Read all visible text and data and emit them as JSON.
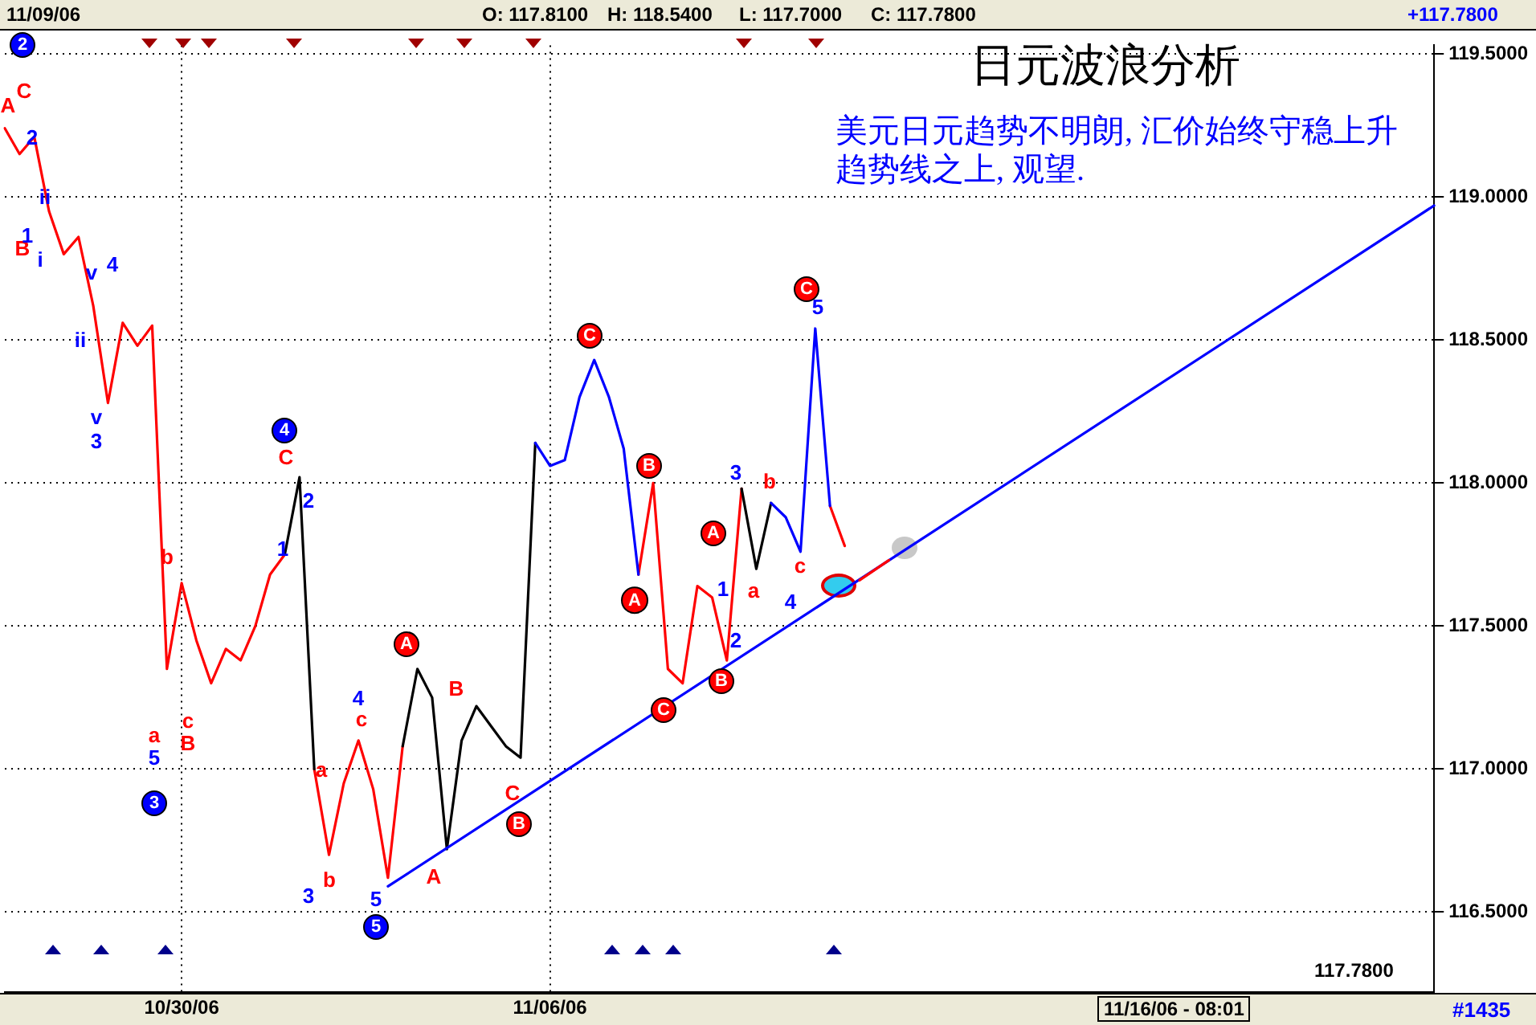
{
  "chart_data": {
    "type": "line",
    "title": "日元波浪分析",
    "categories": [
      null,
      null,
      null,
      null,
      null,
      null,
      null,
      null,
      null,
      null,
      null,
      null,
      "10/30/06",
      null,
      null,
      null,
      null,
      null,
      null,
      null,
      null,
      null,
      null,
      null,
      null,
      null,
      null,
      null,
      null,
      null,
      null,
      null,
      null,
      null,
      null,
      null,
      null,
      "11/06/06",
      null,
      null,
      null,
      null,
      null,
      null,
      null,
      null,
      null,
      null,
      null,
      null,
      null,
      null,
      null,
      null,
      null,
      null,
      null,
      null,
      null,
      null,
      null,
      null,
      null,
      null,
      null,
      null,
      null,
      null,
      null,
      null,
      null,
      null,
      null,
      null,
      null,
      null,
      null,
      null,
      null,
      null,
      null,
      null,
      null,
      null,
      null,
      null,
      null,
      null,
      null,
      null,
      null,
      null,
      null,
      null,
      null,
      null,
      null,
      null
    ],
    "ylim": [
      116.22,
      119.53
    ],
    "yticks": [
      {
        "value": 116.5,
        "label": "116.5000"
      },
      {
        "value": 117,
        "label": "117.0000"
      },
      {
        "value": 117.5,
        "label": "117.5000"
      },
      {
        "value": 118,
        "label": "118.0000"
      },
      {
        "value": 118.5,
        "label": "118.5000"
      },
      {
        "value": 119,
        "label": "119.0000"
      },
      {
        "value": 119.5,
        "label": "119.5000"
      }
    ],
    "grid": true,
    "marker": "none",
    "line_style": "solid",
    "series": [
      {
        "color": "#ff0000",
        "values": [
          119.24,
          119.15,
          119.21,
          118.95,
          118.8,
          118.86,
          118.62,
          118.28,
          118.56,
          118.48,
          118.55,
          117.35,
          117.65,
          117.45,
          117.3,
          117.42,
          117.38,
          117.5,
          117.68,
          117.75,
          null,
          117.0,
          116.7,
          116.95,
          117.1,
          116.93,
          116.62,
          117.08,
          null,
          null,
          null,
          null,
          null,
          null,
          null,
          null,
          null,
          null,
          null,
          null,
          null,
          null,
          null,
          117.68,
          118.0,
          117.35,
          117.3,
          117.64,
          117.6,
          117.38,
          117.98,
          null,
          null,
          null,
          null,
          null,
          117.92,
          117.78,
          null,
          null,
          null,
          null,
          null,
          null,
          null,
          null,
          null,
          null,
          null,
          null,
          null,
          null,
          null,
          null,
          null,
          null,
          null,
          null,
          null,
          null,
          null,
          null,
          null,
          null,
          null,
          null,
          null,
          null,
          null,
          null,
          null,
          null,
          null,
          null,
          null,
          null,
          null,
          null
        ]
      },
      {
        "color": "#000000",
        "values": [
          null,
          null,
          null,
          null,
          null,
          null,
          null,
          null,
          null,
          null,
          null,
          null,
          null,
          null,
          null,
          null,
          null,
          null,
          null,
          117.75,
          118.02,
          117.0,
          null,
          null,
          null,
          null,
          null,
          117.08,
          117.35,
          117.25,
          116.72,
          117.1,
          117.22,
          117.15,
          117.08,
          117.04,
          118.14,
          null,
          null,
          null,
          null,
          null,
          null,
          null,
          null,
          null,
          null,
          null,
          null,
          null,
          117.98,
          117.7,
          117.93,
          null,
          null,
          null,
          null,
          null,
          null,
          null,
          null,
          null,
          null,
          null,
          null,
          null,
          null,
          null,
          null,
          null,
          null,
          null,
          null,
          null,
          null,
          null,
          null,
          null,
          null,
          null,
          null,
          null,
          null,
          null,
          null,
          null,
          null,
          null,
          null,
          null,
          null,
          null,
          null,
          null,
          null,
          null,
          null,
          null
        ]
      },
      {
        "color": "#0000ff",
        "values": [
          null,
          null,
          null,
          null,
          null,
          null,
          null,
          null,
          null,
          null,
          null,
          null,
          null,
          null,
          null,
          null,
          null,
          null,
          null,
          null,
          null,
          null,
          null,
          null,
          null,
          null,
          null,
          null,
          null,
          null,
          null,
          null,
          null,
          null,
          null,
          null,
          118.14,
          118.06,
          118.08,
          118.3,
          118.43,
          118.3,
          118.12,
          117.68,
          null,
          null,
          null,
          null,
          null,
          null,
          null,
          null,
          117.93,
          117.88,
          117.76,
          118.54,
          117.92,
          null,
          null,
          null,
          null,
          null,
          null,
          null,
          null,
          null,
          null,
          null,
          null,
          null,
          null,
          null,
          null,
          null,
          null,
          null,
          null,
          null,
          null,
          null,
          null,
          null,
          null,
          null,
          null,
          null,
          null,
          null,
          null,
          null,
          null,
          null,
          null,
          null,
          null,
          null,
          null,
          null
        ]
      },
      {
        "color": "#0000ff",
        "values": [
          null,
          null,
          null,
          null,
          null,
          null,
          null,
          null,
          null,
          null,
          null,
          null,
          null,
          null,
          null,
          null,
          null,
          null,
          null,
          null,
          null,
          null,
          null,
          null,
          null,
          null,
          116.59,
          null,
          null,
          null,
          null,
          null,
          null,
          null,
          null,
          null,
          null,
          null,
          null,
          null,
          null,
          null,
          null,
          null,
          null,
          null,
          null,
          null,
          null,
          null,
          null,
          null,
          null,
          null,
          null,
          null,
          null,
          null,
          null,
          null,
          null,
          null,
          null,
          null,
          null,
          null,
          null,
          null,
          null,
          null,
          null,
          null,
          null,
          null,
          null,
          null,
          null,
          null,
          null,
          null,
          null,
          null,
          null,
          null,
          null,
          null,
          null,
          null,
          null,
          null,
          null,
          null,
          null,
          null,
          null,
          null,
          null,
          118.97
        ]
      },
      {
        "color": "#ff0000",
        "values": [
          null,
          null,
          null,
          null,
          null,
          null,
          null,
          null,
          null,
          null,
          null,
          null,
          null,
          null,
          null,
          null,
          null,
          null,
          null,
          null,
          null,
          null,
          null,
          null,
          null,
          null,
          null,
          null,
          null,
          null,
          null,
          null,
          null,
          null,
          null,
          null,
          null,
          null,
          null,
          null,
          null,
          null,
          null,
          null,
          null,
          null,
          null,
          null,
          null,
          null,
          null,
          null,
          null,
          null,
          null,
          null,
          null,
          null,
          117.66,
          null,
          117.73,
          null,
          null,
          null,
          null,
          null,
          null,
          null,
          null,
          null,
          null,
          null,
          null,
          null,
          null,
          null,
          null,
          null,
          null,
          null,
          null,
          null,
          null,
          null,
          null,
          null,
          null,
          null,
          null,
          null,
          null,
          null,
          null,
          null,
          null,
          null,
          null,
          null
        ]
      }
    ],
    "annotations": [
      "11/09/06",
      "O: 117.8100",
      "H: 118.5400",
      "L: 117.7000",
      "C: 117.7800",
      "+117.7800",
      "美元日元趋势不明朗, 汇价始终守稳上升趋势线之上, 观望.",
      "117.7800",
      "11/16/06 - 08:01",
      "#1435",
      "A",
      "C",
      "2",
      "B",
      "i",
      "ii",
      "v",
      "4",
      "ii",
      "v",
      "3",
      "b",
      "a",
      "5",
      "3",
      "c",
      "B",
      "4",
      "C",
      "2",
      {
        "text": "1",
        "y": 117.78
      },
      "4",
      "c",
      {
        "text": "a",
        "y": 116.95
      },
      "b",
      "3",
      "5",
      "5",
      "A",
      "B",
      "A",
      "C",
      "B",
      "C",
      "B",
      {
        "text": "A",
        "y": 117.68
      },
      "C",
      "A",
      "1",
      "2",
      "B",
      {
        "text": "3",
        "y": 117.98
      },
      "a",
      {
        "text": "b",
        "y": 117.93
      },
      {
        "text": "c",
        "y": 117.76
      },
      "4",
      "C",
      {
        "text": "5",
        "y": 118.54
      },
      "2",
      "1"
    ]
  }
}
